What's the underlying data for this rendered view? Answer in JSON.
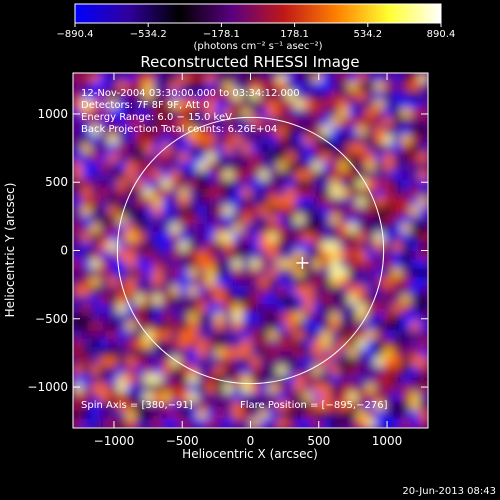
{
  "chart_data": {
    "type": "heatmap",
    "title": "Reconstructed RHESSI Image",
    "xlabel": "Heliocentric X (arcsec)",
    "ylabel": "Heliocentric Y (arcsec)",
    "xlim": [
      -1300,
      1300
    ],
    "ylim": [
      -1300,
      1300
    ],
    "xticks": [
      -1000,
      -500,
      0,
      500,
      1000
    ],
    "yticks": [
      -1000,
      -500,
      0,
      500,
      1000
    ],
    "x_tick_labels": [
      "−1000",
      "−500",
      "0",
      "500",
      "1000"
    ],
    "y_tick_labels": [
      "−1000",
      "−500",
      "0",
      "500",
      "1000"
    ],
    "colorbar": {
      "min": -890.4,
      "max": 890.4,
      "tick_values": [
        -890.4,
        -534.2,
        -178.1,
        178.1,
        534.2,
        890.4
      ],
      "tick_labels": [
        "−890.4",
        "−534.2",
        "−178.1",
        "178.1",
        "534.2",
        "890.4"
      ],
      "unit_label": "(photons cm⁻² s⁻¹ asec⁻²)",
      "colors": [
        "#0000ff",
        "#3000a0",
        "#000000",
        "#5a0080",
        "#c01818",
        "#ff8000",
        "#ffff30",
        "#ffffff"
      ]
    },
    "annotations": {
      "time_range": "12-Nov-2004 03:30:00.000 to 03:34:12.000",
      "detectors": "Detectors: 7F 8F 9F, Att 0",
      "energy_range": "Energy Range: 6.0 − 15.0 keV",
      "method_counts": "Back Projection   Total counts: 6.26E+04",
      "spin_axis": "Spin Axis = [380,−91]",
      "flare_position": "Flare Position = [−895,−276]"
    },
    "solar_limb_radius_arcsec": 975,
    "spin_axis_marker": [
      380,
      -91
    ],
    "grid": false
  },
  "footer": {
    "date": "20-Jun-2013 08:43"
  }
}
